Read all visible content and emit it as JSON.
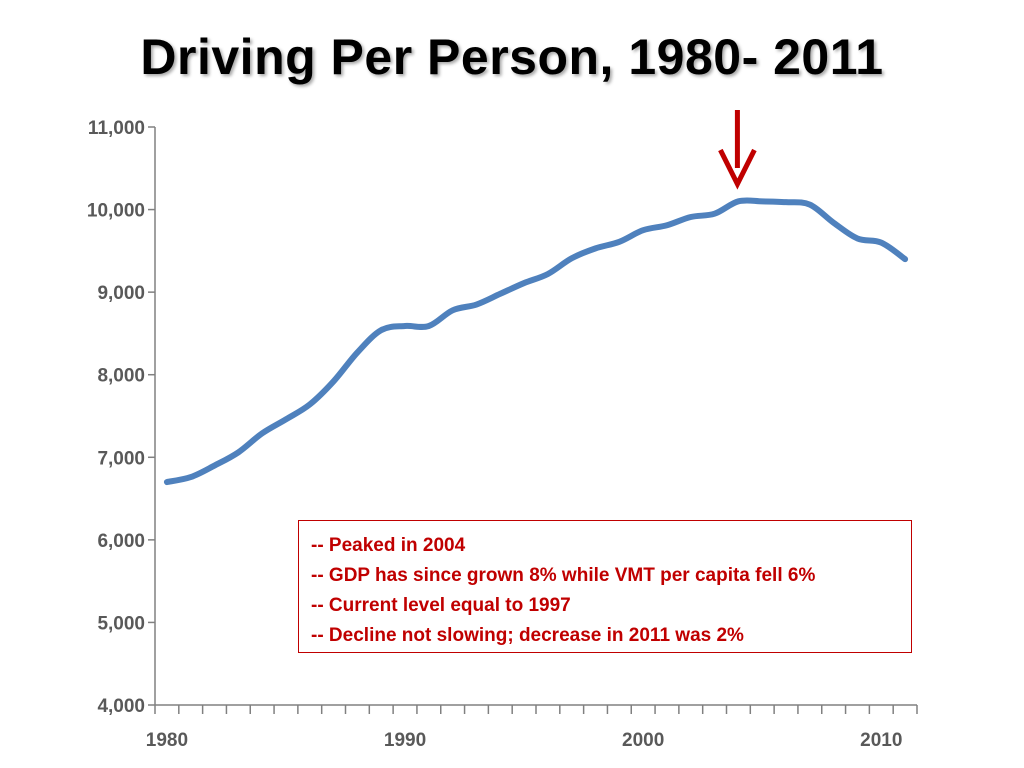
{
  "title": "Driving Per Person, 1980- 2011",
  "annotations": [
    "-- Peaked in 2004",
    "-- GDP has since grown 8% while VMT per capita fell 6%",
    "-- Current level equal to 1997",
    "-- Decline not slowing; decrease in 2011 was 2%"
  ],
  "colors": {
    "line": "#4f81bd",
    "arrow": "#c00000",
    "note": "#c00000",
    "axis": "#808080",
    "tick_text": "#595959"
  },
  "peak_marker": {
    "icon": "arrow-down-icon",
    "year": 2004
  },
  "chart_data": {
    "type": "line",
    "title": "Driving Per Person, 1980- 2011",
    "xlabel": "",
    "ylabel": "",
    "xlim": [
      1980,
      2011
    ],
    "ylim": [
      4000,
      11000
    ],
    "x_ticks": [
      1980,
      1990,
      2000,
      2010
    ],
    "y_ticks": [
      4000,
      5000,
      6000,
      7000,
      8000,
      9000,
      10000,
      11000
    ],
    "x_tick_labels": [
      "1980",
      "1990",
      "2000",
      "2010"
    ],
    "y_tick_labels": [
      "4,000",
      "5,000",
      "6,000",
      "7,000",
      "8,000",
      "9,000",
      "10,000",
      "11,000"
    ],
    "grid": false,
    "legend": "none",
    "x": [
      1980,
      1981,
      1982,
      1983,
      1984,
      1985,
      1986,
      1987,
      1988,
      1989,
      1990,
      1991,
      1992,
      1993,
      1994,
      1995,
      1996,
      1997,
      1998,
      1999,
      2000,
      2001,
      2002,
      2003,
      2004,
      2005,
      2006,
      2007,
      2008,
      2009,
      2010,
      2011
    ],
    "values": [
      6700,
      6760,
      6900,
      7060,
      7290,
      7460,
      7640,
      7920,
      8270,
      8540,
      8590,
      8590,
      8780,
      8850,
      8980,
      9110,
      9220,
      9410,
      9530,
      9610,
      9750,
      9810,
      9910,
      9950,
      10100,
      10100,
      10090,
      10060,
      9840,
      9650,
      9600,
      9400
    ]
  }
}
